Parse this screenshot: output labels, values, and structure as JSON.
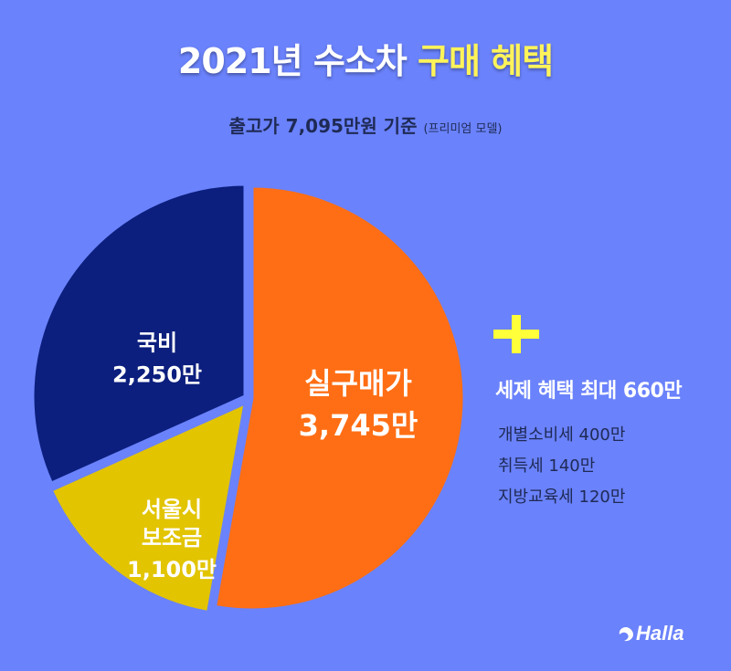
{
  "title": {
    "main": "2021년 수소차 ",
    "highlight": "구매 혜택"
  },
  "subtitle": {
    "main": "출고가 7,095만원 기준 ",
    "note": "(프리미엄 모델)"
  },
  "chart_data": {
    "type": "pie",
    "unit": "만",
    "slices": [
      {
        "name": "실구매가",
        "value": 3745,
        "label": "3,745만",
        "color": "#ff6e14"
      },
      {
        "name": "서울시 보조금",
        "value": 1100,
        "label": "1,100만",
        "color": "#e2c400",
        "name_lines": [
          "서울시",
          "보조금"
        ]
      },
      {
        "name": "국비",
        "value": 2250,
        "label": "2,250만",
        "color": "#0c1f7e"
      }
    ]
  },
  "tax": {
    "heading": "세제 혜택 최대 660만",
    "items": [
      "개별소비세 400만",
      "취득세 140만",
      "지방교육세 120만"
    ]
  },
  "logo": {
    "text": "Halla"
  }
}
